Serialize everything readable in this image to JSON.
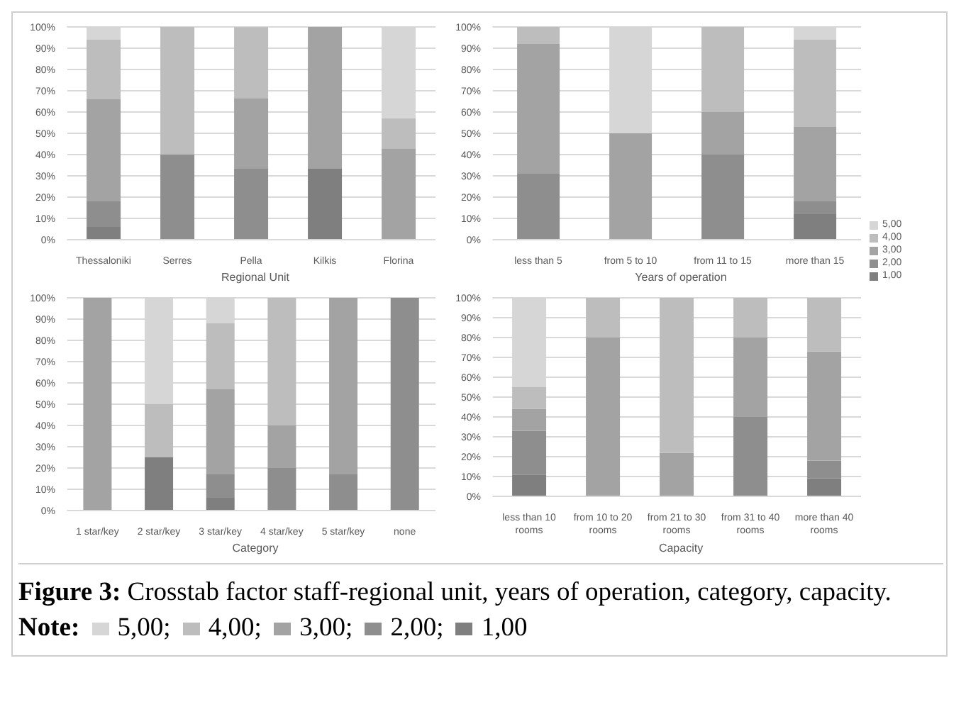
{
  "chart_data": [
    {
      "type": "bar",
      "stacked": true,
      "xlabel": "Regional Unit",
      "categories": [
        "Thessaloniki",
        "Serres",
        "Pella",
        "Kilkis",
        "Florina"
      ],
      "ylim": [
        0,
        100
      ],
      "yticks": [
        {
          "value": 0,
          "label": "0%"
        },
        {
          "value": 10,
          "label": "10%"
        },
        {
          "value": 20,
          "label": "20%"
        },
        {
          "value": 30,
          "label": "30%"
        },
        {
          "value": 40,
          "label": "40%"
        },
        {
          "value": 50,
          "label": "50%"
        },
        {
          "value": 60,
          "label": "60%"
        },
        {
          "value": 70,
          "label": "70%"
        },
        {
          "value": 80,
          "label": "80%"
        },
        {
          "value": 90,
          "label": "90%"
        },
        {
          "value": 100,
          "label": "100%"
        }
      ],
      "grid": "y",
      "series": [
        {
          "color": "#7f7f7f",
          "values": [
            6,
            0,
            0,
            33.3,
            0
          ]
        },
        {
          "color": "#8e8e8e",
          "values": [
            12,
            40,
            33.3,
            0,
            0
          ]
        },
        {
          "color": "#a3a3a3",
          "values": [
            48,
            0,
            33.3,
            66.7,
            42.9
          ]
        },
        {
          "color": "#bdbdbd",
          "values": [
            28,
            60,
            33.3,
            0,
            14.2
          ]
        },
        {
          "color": "#d6d6d6",
          "values": [
            6,
            0,
            0,
            0,
            42.9
          ]
        }
      ]
    },
    {
      "type": "bar",
      "stacked": true,
      "xlabel": "Years of operation",
      "legend": "right",
      "annotations": [
        "Figure 3:",
        "Crosstab factor staff-regional unit, years of operation, category, capacity.",
        "Note:",
        "5,00;",
        "4,00;",
        "3,00;",
        "2,00;",
        "1,00"
      ],
      "categories": [
        "less than 5",
        "from 5 to 10",
        "from 11 to 15",
        "more than 15"
      ],
      "ylim": [
        0,
        100
      ],
      "yticks": [
        {
          "value": 0,
          "label": "0%"
        },
        {
          "value": 10,
          "label": "10%"
        },
        {
          "value": 20,
          "label": "20%"
        },
        {
          "value": 30,
          "label": "30%"
        },
        {
          "value": 40,
          "label": "40%"
        },
        {
          "value": 50,
          "label": "50%"
        },
        {
          "value": 60,
          "label": "60%"
        },
        {
          "value": 70,
          "label": "70%"
        },
        {
          "value": 80,
          "label": "80%"
        },
        {
          "value": 90,
          "label": "90%"
        },
        {
          "value": 100,
          "label": "100%"
        }
      ],
      "grid": "y",
      "series": [
        {
          "name": "1,00",
          "color": "#7f7f7f",
          "values": [
            0,
            0,
            0,
            12
          ]
        },
        {
          "name": "2,00",
          "color": "#8e8e8e",
          "values": [
            31,
            0,
            40,
            6
          ]
        },
        {
          "name": "3,00",
          "color": "#a3a3a3",
          "values": [
            61,
            50,
            20,
            35
          ]
        },
        {
          "name": "4,00",
          "color": "#bdbdbd",
          "values": [
            8,
            0,
            40,
            41
          ]
        },
        {
          "name": "5,00",
          "color": "#d6d6d6",
          "values": [
            0,
            50,
            0,
            6
          ]
        }
      ]
    },
    {
      "type": "bar",
      "stacked": true,
      "xlabel": "Category",
      "categories": [
        "1 star/key",
        "2 star/key",
        "3 star/key",
        "4 star/key",
        "5 star/key",
        "none"
      ],
      "ylim": [
        0,
        100
      ],
      "yticks": [
        {
          "value": 0,
          "label": "0%"
        },
        {
          "value": 10,
          "label": "10%"
        },
        {
          "value": 20,
          "label": "20%"
        },
        {
          "value": 30,
          "label": "30%"
        },
        {
          "value": 40,
          "label": "40%"
        },
        {
          "value": 50,
          "label": "50%"
        },
        {
          "value": 60,
          "label": "60%"
        },
        {
          "value": 70,
          "label": "70%"
        },
        {
          "value": 80,
          "label": "80%"
        },
        {
          "value": 90,
          "label": "90%"
        },
        {
          "value": 100,
          "label": "100%"
        }
      ],
      "grid": "y",
      "series": [
        {
          "color": "#7f7f7f",
          "values": [
            0,
            25,
            6,
            0,
            0,
            0
          ]
        },
        {
          "color": "#8e8e8e",
          "values": [
            0,
            0,
            11,
            20,
            17,
            100
          ]
        },
        {
          "color": "#a3a3a3",
          "values": [
            100,
            0,
            40,
            20,
            83,
            0
          ]
        },
        {
          "color": "#bdbdbd",
          "values": [
            0,
            25,
            31,
            60,
            0,
            0
          ]
        },
        {
          "color": "#d6d6d6",
          "values": [
            0,
            50,
            12,
            0,
            0,
            0
          ]
        }
      ]
    },
    {
      "type": "bar",
      "stacked": true,
      "xlabel": "Capacity",
      "categories": [
        "less than 10 rooms",
        "from 10 to 20 rooms",
        "from 21 to 30 rooms",
        "from 31 to 40 rooms",
        "more than 40 rooms"
      ],
      "ylim": [
        0,
        100
      ],
      "yticks": [
        {
          "value": 0,
          "label": "0%"
        },
        {
          "value": 10,
          "label": "10%"
        },
        {
          "value": 20,
          "label": "20%"
        },
        {
          "value": 30,
          "label": "30%"
        },
        {
          "value": 40,
          "label": "40%"
        },
        {
          "value": 50,
          "label": "50%"
        },
        {
          "value": 60,
          "label": "60%"
        },
        {
          "value": 70,
          "label": "70%"
        },
        {
          "value": 80,
          "label": "80%"
        },
        {
          "value": 90,
          "label": "90%"
        },
        {
          "value": 100,
          "label": "100%"
        }
      ],
      "grid": "y",
      "series": [
        {
          "color": "#7f7f7f",
          "values": [
            11,
            0,
            0,
            0,
            9
          ]
        },
        {
          "color": "#8e8e8e",
          "values": [
            22,
            0,
            0,
            40,
            9
          ]
        },
        {
          "color": "#a3a3a3",
          "values": [
            11,
            80,
            22,
            40,
            55
          ]
        },
        {
          "color": "#bdbdbd",
          "values": [
            11,
            20,
            78,
            20,
            27
          ]
        },
        {
          "color": "#d6d6d6",
          "values": [
            45,
            0,
            0,
            0,
            0
          ]
        }
      ]
    }
  ]
}
